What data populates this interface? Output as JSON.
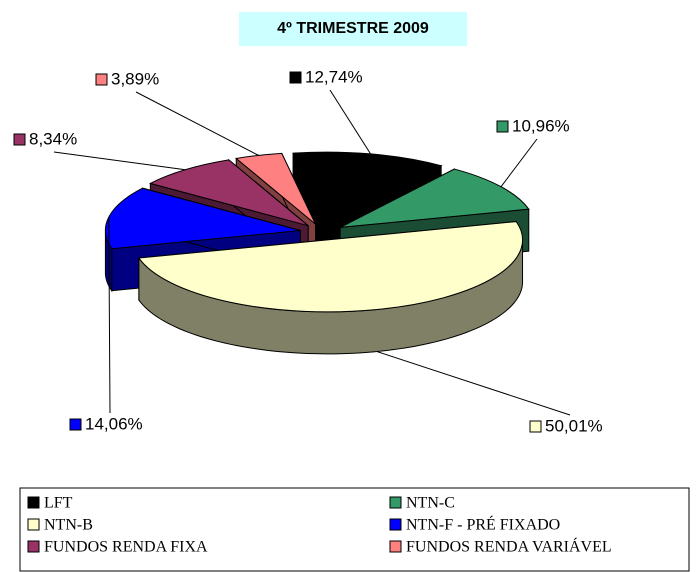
{
  "chart_data": {
    "type": "pie",
    "title": "4º TRIMESTRE 2009",
    "categories": [
      "LFT",
      "NTN-C",
      "NTN-B",
      "NTN-F - PRÉ FIXADO",
      "FUNDOS RENDA FIXA",
      "FUNDOS RENDA VARIÁVEL"
    ],
    "values": [
      12.74,
      10.96,
      50.01,
      14.06,
      8.34,
      3.89
    ],
    "value_labels": [
      "12,74%",
      "10,96%",
      "50,01%",
      "14,06%",
      "8,34%",
      "3,89%"
    ],
    "colors": [
      "#000000",
      "#339966",
      "#ffffcc",
      "#0000ff",
      "#993366",
      "#ff8080"
    ],
    "legend": "bottom"
  }
}
